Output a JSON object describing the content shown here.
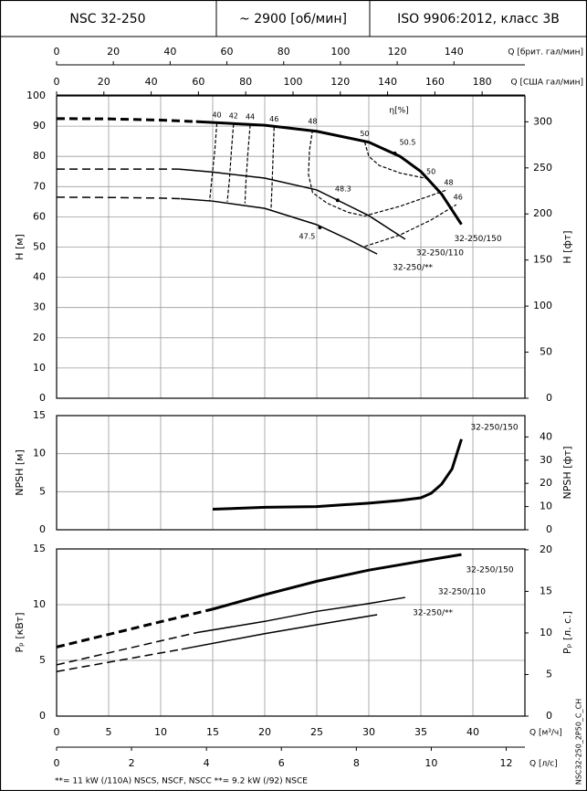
{
  "header": {
    "cells": [
      "NSC 32-250",
      "~ 2900 [об/мин]",
      "ISO 9906:2012, класс 3B"
    ]
  },
  "chart_data": [
    {
      "type": "line",
      "grid": true,
      "x_axes_top": [
        {
          "label": "Q [брит. гал/мин]",
          "lim": [
            0,
            165
          ],
          "ticks": [
            0,
            20,
            40,
            60,
            80,
            100,
            120,
            140
          ]
        },
        {
          "label": "Q [США гал/мин]",
          "lim": [
            0,
            198.1
          ],
          "ticks": [
            0,
            20,
            40,
            60,
            80,
            100,
            120,
            140,
            160,
            180
          ]
        }
      ],
      "y_label": "H [м]",
      "ylim": [
        0,
        100
      ],
      "yticks": [
        0,
        10,
        20,
        30,
        40,
        50,
        60,
        70,
        80,
        90,
        100
      ],
      "y2_label": "H [фт]",
      "y2lim": [
        0,
        328.1
      ],
      "y2ticks": [
        0,
        50,
        100,
        150,
        200,
        250,
        300
      ],
      "series": [
        {
          "name": "32-250/150",
          "color": "#000000",
          "line_width": 3,
          "dashed_x": [
            0,
            5,
            10,
            13.4
          ],
          "dashed_values": [
            92.5,
            92.4,
            92,
            91.5
          ],
          "x": [
            13.4,
            20,
            25,
            30,
            33,
            35,
            37,
            38.9
          ],
          "values": [
            91.5,
            90.3,
            88.3,
            84.7,
            80,
            75,
            67.5,
            57.5
          ]
        },
        {
          "name": "32-250/110",
          "color": "#000000",
          "line_width": 1.5,
          "dashed_x": [
            0,
            5,
            10,
            11.7
          ],
          "dashed_values": [
            75.8,
            75.8,
            75.8,
            75.8
          ],
          "x": [
            11.7,
            15,
            20,
            25,
            30,
            33.5
          ],
          "values": [
            75.8,
            74.8,
            72.8,
            68.9,
            60.4,
            52.6
          ]
        },
        {
          "name": "32-250/**",
          "color": "#000000",
          "line_width": 1.5,
          "dashed_x": [
            0,
            5,
            10,
            11.9
          ],
          "dashed_values": [
            66.5,
            66.4,
            66.2,
            66
          ],
          "x": [
            11.9,
            15,
            20,
            25,
            28,
            30.8
          ],
          "values": [
            66,
            65.2,
            62.8,
            57.4,
            52.6,
            47.7
          ]
        }
      ],
      "efficiency": {
        "label": "η[%]",
        "curves": [
          {
            "label": "40",
            "x": [
              15.4,
              15.2,
              14.9,
              14.7
            ],
            "values": [
              90.9,
              82,
              72,
              65.3
            ]
          },
          {
            "label": "42",
            "x": [
              17,
              16.8,
              16.6,
              16.4
            ],
            "values": [
              90.7,
              82,
              72,
              65
            ]
          },
          {
            "label": "44",
            "x": [
              18.6,
              18.4,
              18.2,
              18.1
            ],
            "values": [
              90.4,
              82,
              72,
              64.5
            ]
          },
          {
            "label": "46",
            "x": [
              20.9,
              20.8,
              20.7,
              20.6
            ],
            "values": [
              89.6,
              80,
              70,
              62.2
            ]
          },
          {
            "label": "48",
            "x": [
              24.6,
              24.3,
              24.2,
              24.6,
              26,
              28,
              29.6,
              33,
              37.5
            ],
            "values": [
              88.8,
              82,
              74,
              68,
              64.5,
              61.5,
              60.3,
              63.5,
              68.9
            ]
          },
          {
            "label": "50",
            "x": [
              29.6,
              30,
              31,
              33,
              35.8
            ],
            "values": [
              84.8,
              80,
              77,
              74.5,
              72.5
            ]
          },
          {
            "label": "46",
            "x": [
              29.6,
              33,
              36,
              38.4
            ],
            "values": [
              50.2,
              54,
              59,
              64
            ]
          }
        ],
        "points": [
          {
            "label": "50.5",
            "x": 32.5,
            "value": 81
          },
          {
            "label": "48.3",
            "x": 27,
            "value": 65.5
          },
          {
            "label": "47.5",
            "x": 25.3,
            "value": 56.5
          }
        ]
      }
    },
    {
      "type": "line",
      "grid": true,
      "y_label": "NPSH [м]",
      "ylim": [
        0,
        15
      ],
      "yticks": [
        0,
        5,
        10,
        15
      ],
      "y2_label": "NPSH [фт]",
      "y2lim": [
        0,
        49.2
      ],
      "y2ticks": [
        0,
        10,
        20,
        30,
        40
      ],
      "series": [
        {
          "name": "32-250/150",
          "color": "#000000",
          "line_width": 3,
          "x": [
            15,
            20,
            25,
            30,
            33,
            35,
            36,
            37,
            38,
            38.9
          ],
          "values": [
            2.7,
            2.95,
            3.05,
            3.5,
            3.85,
            4.2,
            4.8,
            6,
            8,
            11.9
          ]
        }
      ]
    },
    {
      "type": "line",
      "grid": true,
      "y_label": "Pₚ [кВт]",
      "ylim": [
        0,
        15
      ],
      "yticks": [
        0,
        5,
        10,
        15
      ],
      "y2_label": "Pₚ [л. с.]",
      "y2lim": [
        0,
        20.1
      ],
      "y2ticks": [
        0,
        5,
        10,
        15,
        20
      ],
      "x_axes_bottom": [
        {
          "label": "Q [м³/ч]",
          "lim": [
            0,
            45
          ],
          "ticks": [
            0,
            5,
            10,
            15,
            20,
            25,
            30,
            35,
            40
          ]
        },
        {
          "label": "Q [л/с]",
          "lim": [
            0,
            12.5
          ],
          "ticks": [
            0,
            2,
            4,
            6,
            8,
            10,
            12
          ]
        }
      ],
      "series": [
        {
          "name": "32-250/150",
          "color": "#000000",
          "line_width": 3,
          "dashed_x": [
            0,
            15
          ],
          "dashed_values": [
            6.2,
            9.6
          ],
          "x": [
            15,
            20,
            25,
            30,
            35,
            38.9
          ],
          "values": [
            9.6,
            10.9,
            12.1,
            13.1,
            13.9,
            14.5
          ]
        },
        {
          "name": "32-250/110",
          "color": "#000000",
          "line_width": 1.5,
          "dashed_x": [
            0,
            13.5
          ],
          "dashed_values": [
            4.6,
            7.5
          ],
          "x": [
            13.5,
            20,
            25,
            30,
            33.5
          ],
          "values": [
            7.5,
            8.5,
            9.4,
            10.1,
            10.65
          ]
        },
        {
          "name": "32-250/**",
          "color": "#000000",
          "line_width": 1.5,
          "dashed_x": [
            0,
            12
          ],
          "dashed_values": [
            4,
            6
          ],
          "x": [
            12,
            20,
            25,
            30.8
          ],
          "values": [
            6,
            7.4,
            8.2,
            9.1
          ]
        }
      ]
    }
  ],
  "footnote": "**= 11 kW (/110A) NSCS, NSCF, NSCC   **= 9.2 kW (/92) NSCE",
  "side_code": "NSC32-250_2P50_C_CH"
}
